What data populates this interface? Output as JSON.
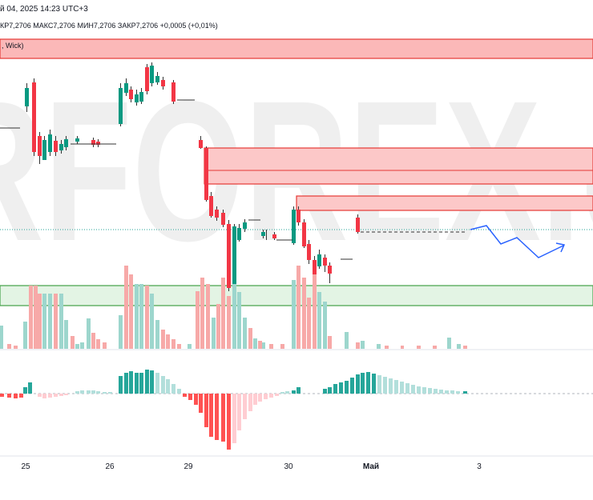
{
  "header": {
    "datetime": "й 04, 2025 14:23 UTC+3",
    "ohlc": "КР7,2706  МАКС7,2706  МИН7,2706  ЗАКР7,2706  +0,0005 (+0,01%)"
  },
  "zone_label": ", Wick)",
  "watermark": "RFOREX.c",
  "x_axis": {
    "labels": [
      "25",
      "26",
      "29",
      "30",
      "Май",
      "3"
    ]
  }
}
